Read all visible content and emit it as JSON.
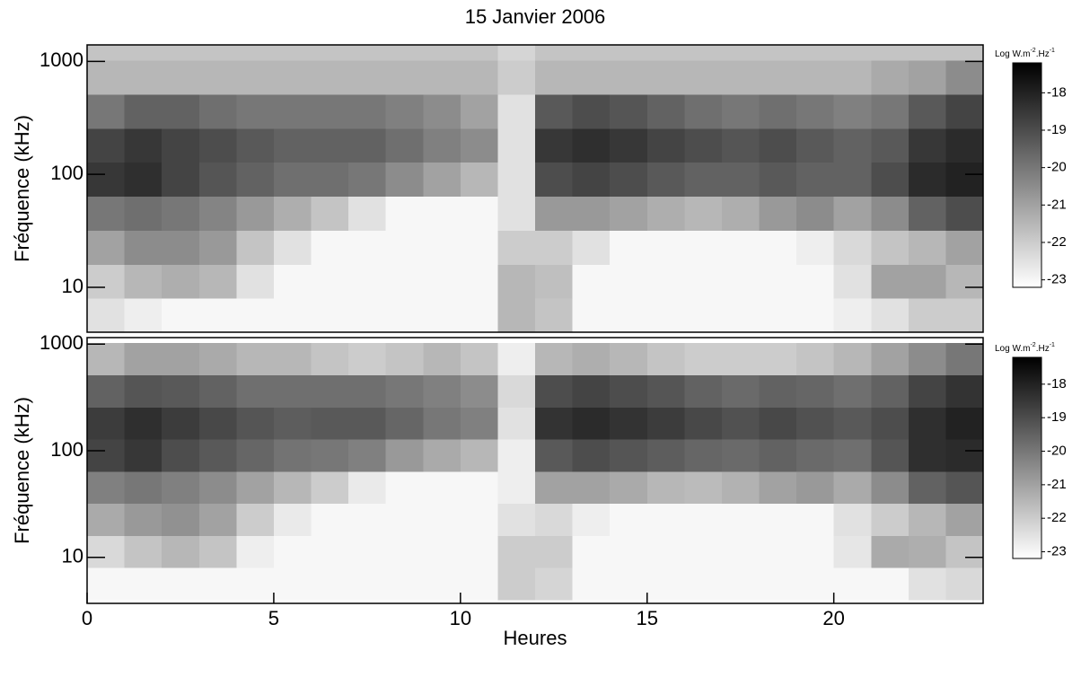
{
  "chart_data": [
    {
      "type": "heatmap",
      "title": "15 Janvier 2006",
      "ylabel": "Fréquence (kHz)",
      "log_y": true,
      "xlim": [
        0,
        24
      ],
      "ylim": [
        4,
        1400
      ],
      "yticks": [
        10,
        100,
        1000
      ],
      "x_edges": [
        0,
        1,
        2,
        3,
        4,
        5,
        6,
        7,
        8,
        9,
        10,
        11,
        12,
        13,
        14,
        15,
        16,
        17,
        18,
        19,
        20,
        21,
        22,
        23,
        24
      ],
      "y_edges": [
        4,
        8,
        16,
        32,
        64,
        128,
        256,
        512,
        1024,
        1400
      ],
      "z": [
        [
          -22.5,
          -22.8,
          -23,
          -23,
          -23,
          -23,
          -23,
          -23,
          -23,
          -23,
          -23,
          -21.5,
          -21.8,
          -23,
          -23,
          -23,
          -23,
          -23,
          -23,
          -23,
          -22.8,
          -22.5,
          -22,
          -22
        ],
        [
          -22,
          -21.5,
          -21.3,
          -21.5,
          -22.5,
          -23,
          -23,
          -23,
          -23,
          -23,
          -23,
          -21.5,
          -21.7,
          -23,
          -23,
          -23,
          -23,
          -23,
          -23,
          -23,
          -22.5,
          -21,
          -21,
          -21.5
        ],
        [
          -21,
          -20.5,
          -20.5,
          -20.8,
          -21.8,
          -22.5,
          -23,
          -23,
          -23,
          -23,
          -23,
          -22,
          -22,
          -22.5,
          -23,
          -23,
          -23,
          -23,
          -23,
          -22.8,
          -22.3,
          -21.8,
          -21.5,
          -21
        ],
        [
          -20,
          -19.8,
          -20,
          -20.3,
          -20.8,
          -21.3,
          -21.8,
          -22.5,
          -23,
          -23,
          -23,
          -22.5,
          -20.8,
          -20.8,
          -21,
          -21.3,
          -21.5,
          -21.3,
          -20.8,
          -20.5,
          -21,
          -20.5,
          -19.5,
          -19
        ],
        [
          -18.5,
          -18.3,
          -18.8,
          -19.2,
          -19.5,
          -19.8,
          -19.8,
          -20,
          -20.5,
          -21,
          -21.5,
          -22.5,
          -19,
          -18.8,
          -19,
          -19.3,
          -19.5,
          -19.5,
          -19.3,
          -19.5,
          -19.5,
          -19,
          -18.2,
          -18
        ],
        [
          -18.8,
          -18.5,
          -18.8,
          -19,
          -19.3,
          -19.5,
          -19.5,
          -19.5,
          -19.8,
          -20.2,
          -20.5,
          -22.5,
          -18.5,
          -18.3,
          -18.5,
          -18.8,
          -19,
          -19.2,
          -19,
          -19.3,
          -19.5,
          -19.3,
          -18.5,
          -18.2
        ],
        [
          -20,
          -19.5,
          -19.5,
          -19.8,
          -20,
          -20,
          -20,
          -20,
          -20.2,
          -20.5,
          -21,
          -22.5,
          -19.3,
          -19,
          -19.2,
          -19.5,
          -19.8,
          -20,
          -19.8,
          -20,
          -20.2,
          -20,
          -19.3,
          -18.8
        ],
        [
          -21.5,
          -21.5,
          -21.5,
          -21.5,
          -21.5,
          -21.5,
          -21.5,
          -21.5,
          -21.5,
          -21.5,
          -21.5,
          -22,
          -21.5,
          -21.5,
          -21.5,
          -21.5,
          -21.5,
          -21.5,
          -21.5,
          -21.5,
          -21.5,
          -21.2,
          -21,
          -20.5
        ],
        [
          -21.8,
          -21.8,
          -21.8,
          -21.8,
          -21.8,
          -21.8,
          -21.8,
          -21.8,
          -21.8,
          -21.8,
          -21.8,
          -22.2,
          -21.8,
          -21.8,
          -21.8,
          -21.8,
          -21.8,
          -21.8,
          -21.8,
          -21.8,
          -21.8,
          -21.8,
          -21.8,
          -21.8
        ]
      ],
      "clim": [
        -23.2,
        -17.2
      ],
      "cticks": [
        -18,
        -19,
        -20,
        -21,
        -22,
        -23
      ],
      "colorbar_label": [
        "Log W.m",
        "-2",
        ".Hz",
        "-1"
      ],
      "colormap": [
        "#ffffff",
        "#000000"
      ]
    },
    {
      "type": "heatmap",
      "xlabel": "Heures",
      "ylabel": "Fréquence (kHz)",
      "log_y": true,
      "xlim": [
        0,
        24
      ],
      "xticks": [
        0,
        5,
        10,
        15,
        20
      ],
      "ylim": [
        3.7,
        1150
      ],
      "yticks": [
        10,
        100,
        1000
      ],
      "x_edges": [
        0,
        1,
        2,
        3,
        4,
        5,
        6,
        7,
        8,
        9,
        10,
        11,
        12,
        13,
        14,
        15,
        16,
        17,
        18,
        19,
        20,
        21,
        22,
        23,
        24
      ],
      "y_edges": [
        4,
        8,
        16,
        32,
        64,
        128,
        256,
        512,
        1024
      ],
      "z": [
        [
          -23,
          -23,
          -23,
          -23,
          -23,
          -23,
          -23,
          -23,
          -23,
          -23,
          -23,
          -22,
          -22.2,
          -23,
          -23,
          -23,
          -23,
          -23,
          -23,
          -23,
          -23,
          -23,
          -22.5,
          -22.3
        ],
        [
          -22.3,
          -21.8,
          -21.5,
          -21.8,
          -22.8,
          -23,
          -23,
          -23,
          -23,
          -23,
          -23,
          -22,
          -22,
          -23,
          -23,
          -23,
          -23,
          -23,
          -23,
          -23,
          -22.6,
          -21.2,
          -21.3,
          -21.8
        ],
        [
          -21.2,
          -20.8,
          -20.6,
          -21,
          -22,
          -22.7,
          -23,
          -23,
          -23,
          -23,
          -23,
          -22.5,
          -22.3,
          -22.8,
          -23,
          -23,
          -23,
          -23,
          -23,
          -23,
          -22.5,
          -22,
          -21.5,
          -21
        ],
        [
          -20.2,
          -20,
          -20.2,
          -20.5,
          -21,
          -21.5,
          -22,
          -22.7,
          -23,
          -23,
          -23,
          -22.8,
          -21,
          -21,
          -21.2,
          -21.5,
          -21.6,
          -21.4,
          -21,
          -20.8,
          -21.2,
          -20.5,
          -19.5,
          -19.2
        ],
        [
          -18.8,
          -18.5,
          -19,
          -19.3,
          -19.6,
          -19.9,
          -20,
          -20.2,
          -20.8,
          -21.2,
          -21.5,
          -22.8,
          -19.3,
          -19,
          -19.2,
          -19.4,
          -19.6,
          -19.7,
          -19.5,
          -19.7,
          -19.8,
          -19.2,
          -18.3,
          -18.2
        ],
        [
          -18.6,
          -18.3,
          -18.6,
          -18.9,
          -19.2,
          -19.4,
          -19.3,
          -19.3,
          -19.6,
          -20,
          -20.2,
          -22.5,
          -18.4,
          -18.2,
          -18.4,
          -18.6,
          -18.9,
          -19.1,
          -18.9,
          -19.1,
          -19.3,
          -19,
          -18.3,
          -18
        ],
        [
          -19.5,
          -19.2,
          -19.3,
          -19.5,
          -19.8,
          -19.8,
          -19.8,
          -19.8,
          -20,
          -20.2,
          -20.5,
          -22.3,
          -19,
          -18.8,
          -19,
          -19.2,
          -19.5,
          -19.7,
          -19.5,
          -19.6,
          -19.8,
          -19.5,
          -18.8,
          -18.4
        ],
        [
          -21.5,
          -21,
          -21,
          -21.2,
          -21.5,
          -21.5,
          -21.8,
          -22,
          -21.8,
          -21.5,
          -21.8,
          -22.8,
          -21.5,
          -21.3,
          -21.5,
          -21.8,
          -22,
          -22,
          -22,
          -21.8,
          -21.5,
          -21,
          -20.5,
          -20
        ]
      ],
      "clim": [
        -23.2,
        -17.2
      ],
      "cticks": [
        -18,
        -19,
        -20,
        -21,
        -22,
        -23
      ],
      "colorbar_label": [
        "Log W.m",
        "-2",
        ".Hz",
        "-1"
      ],
      "colormap": [
        "#ffffff",
        "#000000"
      ]
    }
  ]
}
